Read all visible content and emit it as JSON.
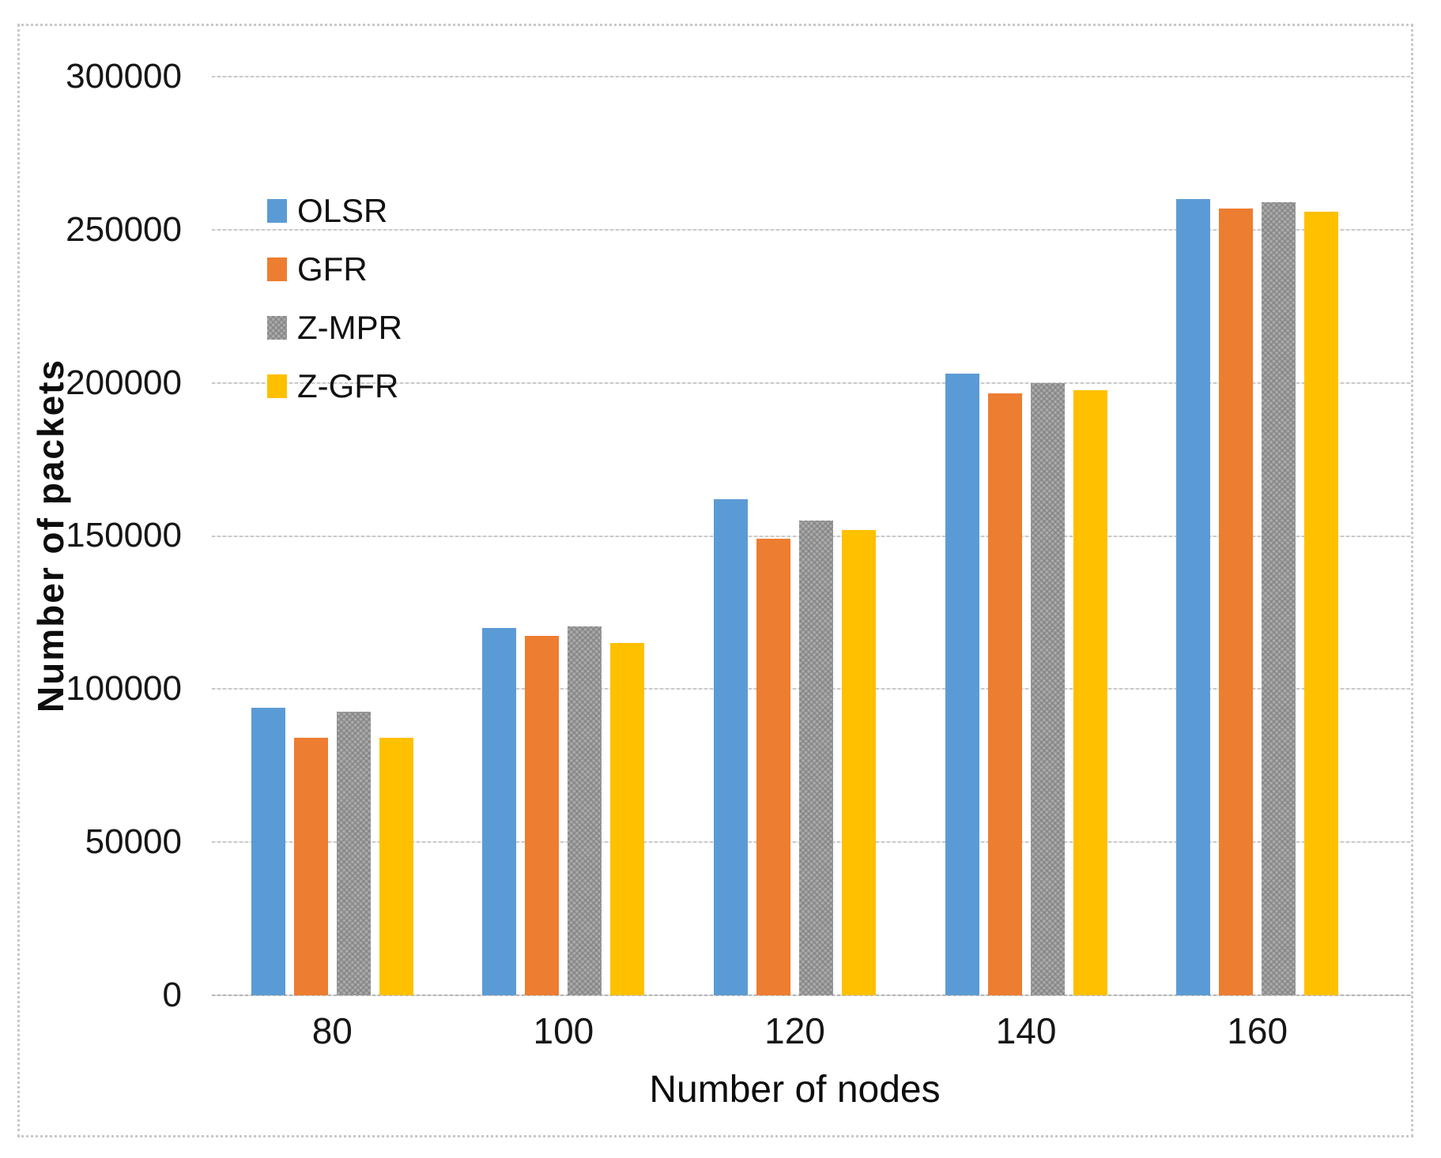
{
  "chart_data": {
    "type": "bar",
    "title": "",
    "xlabel": "Number of nodes",
    "ylabel": "Number of packets",
    "categories": [
      "80",
      "100",
      "120",
      "140",
      "160"
    ],
    "series": [
      {
        "name": "OLSR",
        "color": "#5B9BD5",
        "pattern": "solid",
        "values": [
          94000,
          120000,
          162000,
          203000,
          260000
        ]
      },
      {
        "name": "GFR",
        "color": "#ED7D31",
        "pattern": "solid",
        "values": [
          84000,
          117500,
          149000,
          196500,
          257000
        ]
      },
      {
        "name": "Z-MPR",
        "color": "#ABABAB",
        "pattern": "crosshatch",
        "values": [
          92500,
          120500,
          155000,
          200000,
          259000
        ]
      },
      {
        "name": "Z-GFR",
        "color": "#FFC000",
        "pattern": "solid",
        "values": [
          84000,
          115000,
          152000,
          197500,
          256000
        ]
      }
    ],
    "ylim": [
      0,
      300000
    ],
    "y_ticks": [
      0,
      50000,
      100000,
      150000,
      200000,
      250000,
      300000
    ],
    "y_tick_labels_top_to_bottom": [
      "300000",
      "250000",
      "200000",
      "150000",
      "100000",
      "50000",
      "0"
    ],
    "grid": "horizontal-dashed",
    "gridline_color": "#c9c9c9",
    "legend_position": "upper-left-inside",
    "legend_entries": [
      "OLSR",
      "GFR",
      "Z-MPR",
      "Z-GFR"
    ]
  }
}
